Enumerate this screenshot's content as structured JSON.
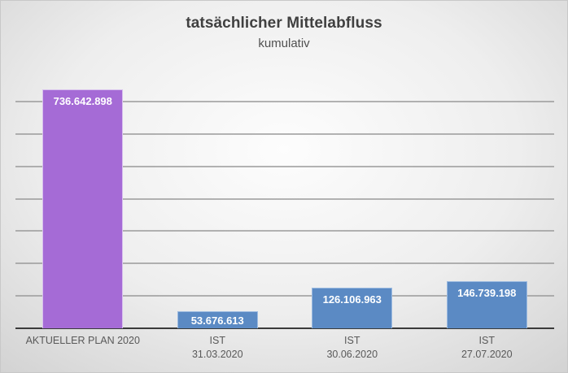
{
  "chart_data": {
    "type": "bar",
    "title": "tatsächlicher Mittelabfluss",
    "subtitle": "kumulativ",
    "categories": [
      "AKTUELLER PLAN 2020",
      "IST 31.03.2020",
      "IST 30.06.2020",
      "IST 27.07.2020"
    ],
    "category_lines": [
      [
        "AKTUELLER PLAN 2020"
      ],
      [
        "IST",
        "31.03.2020"
      ],
      [
        "IST",
        "30.06.2020"
      ],
      [
        "IST",
        "27.07.2020"
      ]
    ],
    "values": [
      736642898,
      53676613,
      126106963,
      146739198
    ],
    "value_labels": [
      "736.642.898",
      "53.676.613",
      "126.106.963",
      "146.739.198"
    ],
    "colors": [
      "#a56bd6",
      "#5b8ac4",
      "#5b8ac4",
      "#5b8ac4"
    ],
    "xlabel": "",
    "ylabel": "",
    "ylim": [
      0,
      800000000
    ],
    "gridline_step": 100000000,
    "grid": true,
    "y_axis_labels_shown": false,
    "legend": "none"
  }
}
